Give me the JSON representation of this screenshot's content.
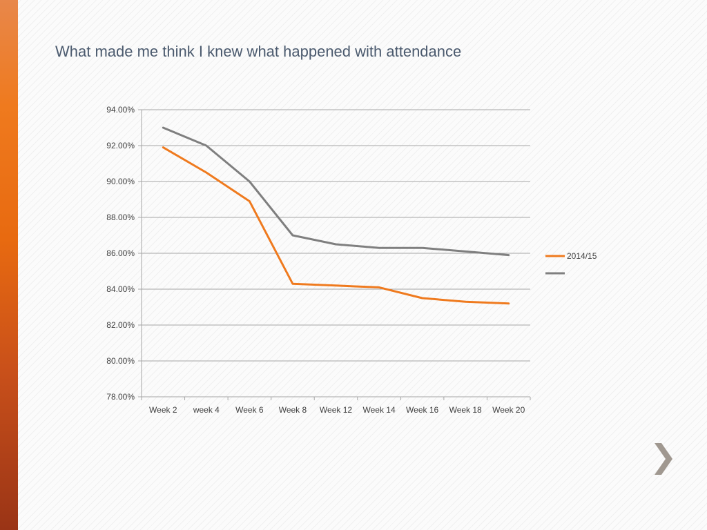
{
  "slide": {
    "title": "What made me think I knew what happened with attendance"
  },
  "colors": {
    "series_2014_15": "#ef7a1e",
    "series_2": "#7f7f7f",
    "gridline": "#a6a6a6",
    "axis_text": "#404040",
    "accent_bar": "#ef7a1e",
    "arrow": "#a09890"
  },
  "icons": {
    "next": "chevron-right-icon"
  },
  "chart_data": {
    "type": "line",
    "title": "",
    "xlabel": "",
    "ylabel": "",
    "categories": [
      "Week 2",
      "week 4",
      "Week 6",
      "Week 8",
      "Week 12",
      "Week 14",
      "Week 16",
      "Week 18",
      "Week 20"
    ],
    "ylim": [
      0.78,
      0.94
    ],
    "yticks": [
      "94.00%",
      "92.00%",
      "90.00%",
      "88.00%",
      "86.00%",
      "84.00%",
      "82.00%",
      "80.00%",
      "78.00%"
    ],
    "grid": true,
    "legend_position": "right",
    "series": [
      {
        "name": "2014/15",
        "color": "#ef7a1e",
        "values": [
          0.919,
          0.905,
          0.889,
          0.843,
          0.842,
          0.841,
          0.835,
          0.833,
          0.832
        ]
      },
      {
        "name": "",
        "color": "#7f7f7f",
        "values": [
          0.93,
          0.92,
          0.9,
          0.87,
          0.865,
          0.863,
          0.863,
          0.861,
          0.859
        ]
      }
    ]
  }
}
